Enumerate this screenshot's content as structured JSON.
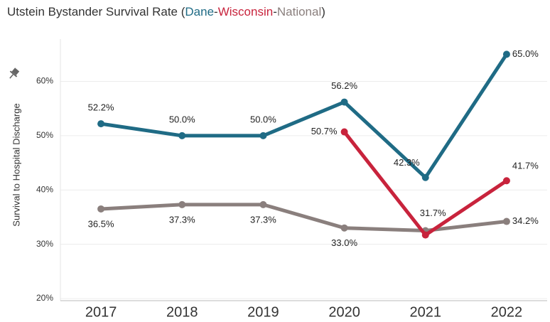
{
  "chart_data": {
    "type": "line",
    "title": "Utstein Bystander Survival Rate",
    "title_delimiters": [
      "(",
      "-",
      "-",
      ")"
    ],
    "y_label": "Survival to Hospital Discharge",
    "categories": [
      "2017",
      "2018",
      "2019",
      "2020",
      "2021",
      "2022"
    ],
    "series": [
      {
        "name": "Dane",
        "color": "#1f6b85",
        "values": [
          52.2,
          50.0,
          50.0,
          56.2,
          42.3,
          65.0
        ],
        "value_labels": [
          "52.2%",
          "50.0%",
          "50.0%",
          "56.2%",
          "42.3%",
          "65.0%"
        ]
      },
      {
        "name": "Wisconsin",
        "color": "#c8233c",
        "values": [
          null,
          null,
          null,
          50.7,
          31.7,
          41.7
        ],
        "value_labels": [
          null,
          null,
          null,
          "50.7%",
          "31.7%",
          "41.7%"
        ]
      },
      {
        "name": "National",
        "color": "#8a7f7d",
        "values": [
          36.5,
          37.3,
          37.3,
          33.0,
          32.5,
          34.2
        ],
        "value_labels": [
          "36.5%",
          "37.3%",
          "37.3%",
          "33.0%",
          null,
          "34.2%"
        ]
      }
    ],
    "ylim": [
      19.6,
      67.8
    ],
    "yticks": [
      {
        "value": 20,
        "label": "20%"
      },
      {
        "value": 30,
        "label": "30%"
      },
      {
        "value": 40,
        "label": "40%"
      },
      {
        "value": 50,
        "label": "50%"
      },
      {
        "value": 60,
        "label": "60%"
      }
    ],
    "grid": true
  }
}
